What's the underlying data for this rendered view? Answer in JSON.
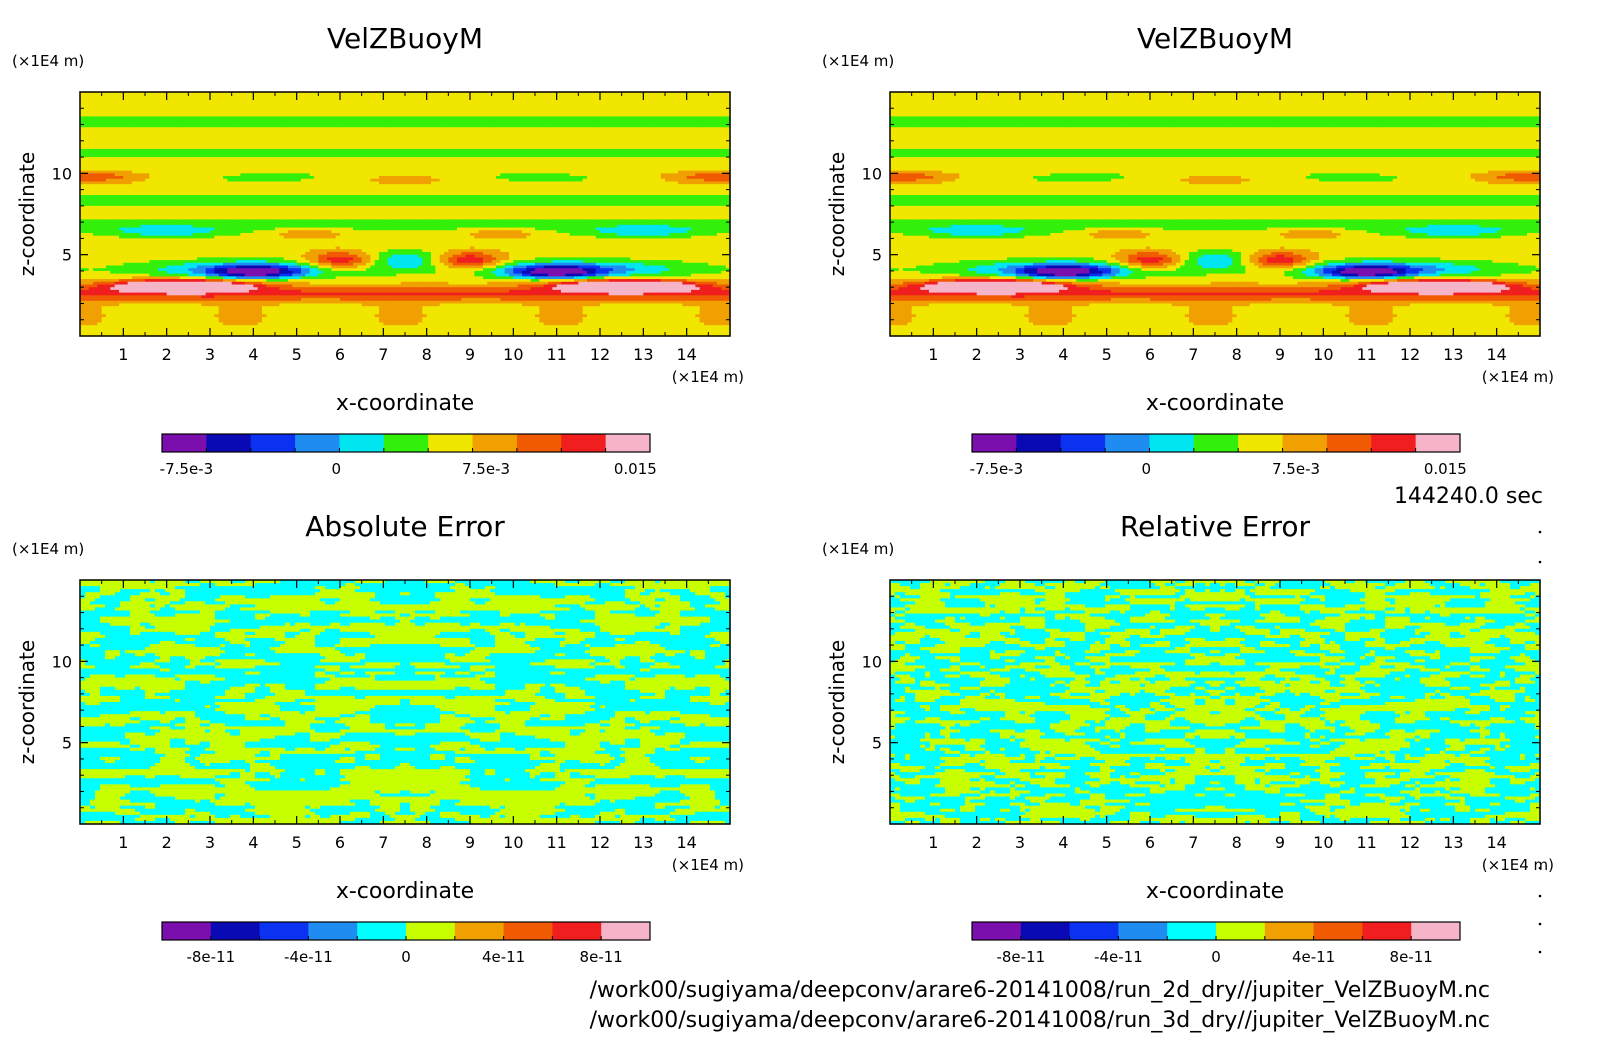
{
  "figure": {
    "time_label": "144240.0 sec",
    "files": [
      "/work00/sugiyama/deepconv/arare6-20141008/run_2d_dry//jupiter_VelZBuoyM.nc",
      "/work00/sugiyama/deepconv/arare6-20141008/run_3d_dry//jupiter_VelZBuoyM.nc"
    ]
  },
  "colors": {
    "velocity_palette": [
      "#7a0fae",
      "#0a0ab4",
      "#0a32f0",
      "#1e8cf0",
      "#00e6f0",
      "#32f00a",
      "#f0e600",
      "#f0a000",
      "#f05a00",
      "#f01e1e",
      "#f5b4c8"
    ],
    "error_palette": [
      "#7a0fae",
      "#0a0ab4",
      "#0a32f0",
      "#1e8cf0",
      "#00ffff",
      "#c8ff00",
      "#f0a000",
      "#f05a00",
      "#f01e1e",
      "#f5b4c8"
    ],
    "error_low": "#00ffff",
    "error_high": "#c8ff00"
  },
  "chart_data": [
    {
      "type": "heatmap",
      "title": "VelZBuoyM",
      "xlabel": "x-coordinate",
      "ylabel": "z-coordinate",
      "x_unit": "(×1E4 m)",
      "y_unit": "(×1E4 m)",
      "xlim": [
        0,
        15
      ],
      "ylim": [
        0,
        15
      ],
      "x_ticks": [
        "1",
        "2",
        "3",
        "4",
        "5",
        "6",
        "7",
        "8",
        "9",
        "10",
        "11",
        "12",
        "13",
        "14"
      ],
      "y_ticks": [
        "5",
        "10"
      ],
      "colorbar_ticks": [
        "-7.5e-3",
        "0",
        "7.5e-3",
        "0.015"
      ],
      "levels": [
        -0.0094,
        -0.0075,
        -0.0056,
        -0.0038,
        -0.0019,
        0,
        0.0019,
        0.0038,
        0.0056,
        0.0075,
        0.0094,
        0.0113,
        0.0131,
        0.015,
        0.0169
      ],
      "color_index": [
        2,
        3,
        4,
        5,
        6,
        7,
        8,
        9,
        10,
        11
      ]
    },
    {
      "type": "heatmap",
      "title": "VelZBuoyM",
      "xlabel": "x-coordinate",
      "ylabel": "z-coordinate",
      "x_unit": "(×1E4 m)",
      "y_unit": "(×1E4 m)",
      "xlim": [
        0,
        15
      ],
      "ylim": [
        0,
        15
      ],
      "x_ticks": [
        "1",
        "2",
        "3",
        "4",
        "5",
        "6",
        "7",
        "8",
        "9",
        "10",
        "11",
        "12",
        "13",
        "14"
      ],
      "y_ticks": [
        "5",
        "10"
      ],
      "colorbar_ticks": [
        "-7.5e-3",
        "0",
        "7.5e-3",
        "0.015"
      ]
    },
    {
      "type": "heatmap",
      "title": "Absolute Error",
      "xlabel": "x-coordinate",
      "ylabel": "z-coordinate",
      "x_unit": "(×1E4 m)",
      "y_unit": "(×1E4 m)",
      "xlim": [
        0,
        15
      ],
      "ylim": [
        0,
        15
      ],
      "x_ticks": [
        "1",
        "2",
        "3",
        "4",
        "5",
        "6",
        "7",
        "8",
        "9",
        "10",
        "11",
        "12",
        "13",
        "14"
      ],
      "y_ticks": [
        "5",
        "10"
      ],
      "colorbar_ticks": [
        "-8e-11",
        "-4e-11",
        "0",
        "4e-11",
        "8e-11"
      ]
    },
    {
      "type": "heatmap",
      "title": "Relative Error",
      "xlabel": "x-coordinate",
      "ylabel": "z-coordinate",
      "x_unit": "(×1E4 m)",
      "y_unit": "(×1E4 m)",
      "xlim": [
        0,
        15
      ],
      "ylim": [
        0,
        15
      ],
      "x_ticks": [
        "1",
        "2",
        "3",
        "4",
        "5",
        "6",
        "7",
        "8",
        "9",
        "10",
        "11",
        "12",
        "13",
        "14"
      ],
      "y_ticks": [
        "5",
        "10"
      ],
      "colorbar_ticks": [
        "-8e-11",
        "-4e-11",
        "0",
        "4e-11",
        "8e-11"
      ]
    }
  ]
}
